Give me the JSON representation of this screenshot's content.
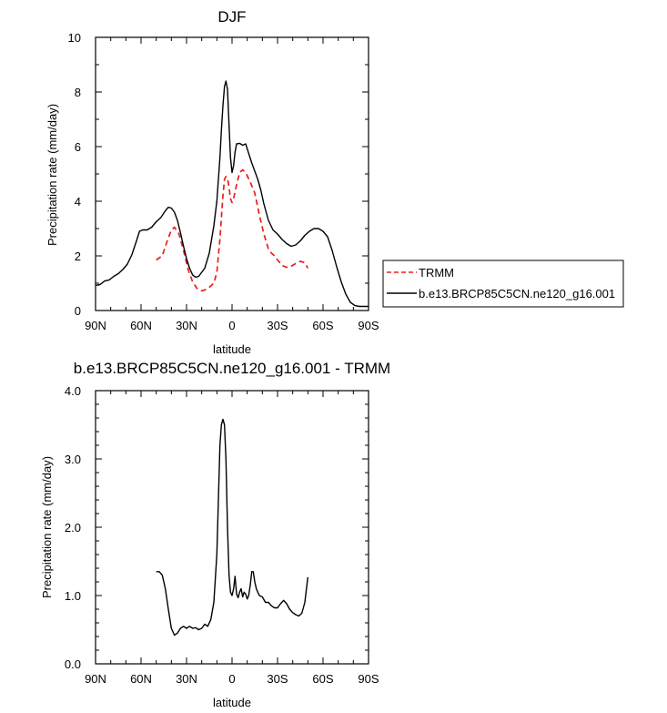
{
  "chart_data": [
    {
      "type": "line",
      "title": "DJF",
      "xlabel": "latitude",
      "ylabel": "Precipitation rate (mm/day)",
      "xlim": [
        90,
        -90
      ],
      "ylim": [
        0,
        10
      ],
      "xticks": [
        90,
        60,
        30,
        0,
        -30,
        -60,
        -90
      ],
      "xtick_labels": [
        "90N",
        "60N",
        "30N",
        "0",
        "30S",
        "60S",
        "90S"
      ],
      "yticks": [
        0,
        2,
        4,
        6,
        8,
        10
      ],
      "ytick_labels": [
        "0",
        "2",
        "4",
        "6",
        "8",
        "10"
      ],
      "legend": "outside-right",
      "series": [
        {
          "name": "TRMM",
          "color": "#e8201c",
          "dash": "dashed",
          "x": [
            50,
            46,
            43,
            40,
            38,
            35,
            32,
            29,
            26,
            23,
            20,
            18,
            15,
            12,
            10,
            8,
            7,
            6,
            5,
            4,
            3,
            2,
            1,
            0,
            -1,
            -3,
            -5,
            -7,
            -9,
            -12,
            -15,
            -18,
            -21,
            -24,
            -26,
            -28,
            -30,
            -33,
            -36,
            -39,
            -42,
            -45,
            -48,
            -50
          ],
          "y": [
            1.85,
            2.0,
            2.5,
            2.95,
            3.05,
            2.8,
            2.2,
            1.5,
            1.05,
            0.8,
            0.72,
            0.75,
            0.85,
            1.0,
            1.4,
            2.6,
            3.4,
            4.2,
            4.8,
            4.9,
            4.85,
            4.5,
            4.1,
            3.95,
            4.1,
            4.6,
            5.05,
            5.15,
            5.05,
            4.7,
            4.3,
            3.5,
            2.8,
            2.25,
            2.1,
            2.0,
            1.85,
            1.65,
            1.58,
            1.62,
            1.72,
            1.8,
            1.75,
            1.55
          ]
        },
        {
          "name": "b.e13.BRCP85C5CN.ne120_g16.001",
          "color": "#000000",
          "dash": "solid",
          "x": [
            90,
            87,
            84,
            81,
            78,
            75,
            72,
            69,
            66,
            63,
            61,
            59,
            56,
            53,
            50,
            47,
            44,
            42,
            40,
            38,
            36,
            34,
            32,
            30,
            28,
            26,
            24,
            22,
            20,
            18,
            15,
            12,
            10,
            8,
            7,
            6,
            5,
            4,
            3,
            2,
            1,
            0,
            -1,
            -2,
            -3,
            -5,
            -7,
            -9,
            -11,
            -13,
            -15,
            -17,
            -19,
            -21,
            -24,
            -27,
            -30,
            -33,
            -36,
            -39,
            -42,
            -45,
            -48,
            -51,
            -54,
            -57,
            -60,
            -63,
            -66,
            -69,
            -72,
            -75,
            -78,
            -81,
            -84,
            -87,
            -90
          ],
          "y": [
            0.92,
            0.95,
            1.08,
            1.12,
            1.25,
            1.35,
            1.5,
            1.7,
            2.05,
            2.55,
            2.9,
            2.95,
            2.95,
            3.05,
            3.25,
            3.4,
            3.65,
            3.78,
            3.75,
            3.6,
            3.3,
            2.85,
            2.35,
            1.9,
            1.55,
            1.3,
            1.22,
            1.25,
            1.4,
            1.55,
            2.1,
            3.1,
            4.0,
            5.6,
            6.6,
            7.5,
            8.2,
            8.4,
            8.1,
            6.8,
            5.6,
            5.05,
            5.3,
            5.8,
            6.1,
            6.12,
            6.05,
            6.1,
            5.75,
            5.4,
            5.1,
            4.8,
            4.4,
            3.9,
            3.3,
            2.95,
            2.8,
            2.6,
            2.45,
            2.35,
            2.4,
            2.55,
            2.75,
            2.9,
            3.0,
            3.0,
            2.9,
            2.7,
            2.2,
            1.6,
            1.05,
            0.6,
            0.3,
            0.18,
            0.15,
            0.15,
            0.15
          ]
        }
      ]
    },
    {
      "type": "line",
      "title": "b.e13.BRCP85C5CN.ne120_g16.001 - TRMM",
      "xlabel": "latitude",
      "ylabel": "Precipitation rate (mm/day)",
      "xlim": [
        90,
        -90
      ],
      "ylim": [
        0,
        4
      ],
      "xticks": [
        90,
        60,
        30,
        0,
        -30,
        -60,
        -90
      ],
      "xtick_labels": [
        "90N",
        "60N",
        "30N",
        "0",
        "30S",
        "60S",
        "90S"
      ],
      "yticks": [
        0,
        1,
        2,
        3,
        4
      ],
      "ytick_labels": [
        "0.0",
        "1.0",
        "2.0",
        "3.0",
        "4.0"
      ],
      "series": [
        {
          "color": "#000000",
          "dash": "solid",
          "x": [
            50,
            48,
            46,
            44,
            42,
            40,
            38,
            36,
            34,
            32,
            30,
            28,
            26,
            24,
            22,
            20,
            18,
            16,
            14,
            12,
            10,
            9,
            8,
            7,
            6,
            5,
            4,
            3,
            2,
            1,
            0,
            -1,
            -2,
            -3,
            -4,
            -5,
            -6,
            -7,
            -8,
            -9,
            -10,
            -11,
            -12,
            -13,
            -14,
            -15,
            -16,
            -17,
            -18,
            -20,
            -22,
            -24,
            -26,
            -28,
            -30,
            -32,
            -34,
            -36,
            -38,
            -40,
            -42,
            -44,
            -46,
            -48,
            -50
          ],
          "y": [
            1.35,
            1.35,
            1.3,
            1.1,
            0.8,
            0.52,
            0.42,
            0.45,
            0.52,
            0.55,
            0.52,
            0.55,
            0.52,
            0.53,
            0.5,
            0.52,
            0.58,
            0.55,
            0.65,
            0.9,
            1.6,
            2.4,
            3.2,
            3.5,
            3.58,
            3.5,
            3.0,
            2.0,
            1.3,
            1.05,
            1.0,
            1.1,
            1.28,
            1.02,
            0.97,
            1.05,
            1.1,
            0.98,
            1.05,
            1.02,
            0.95,
            1.0,
            1.15,
            1.35,
            1.35,
            1.2,
            1.1,
            1.05,
            1.0,
            0.98,
            0.9,
            0.9,
            0.85,
            0.82,
            0.82,
            0.88,
            0.93,
            0.88,
            0.8,
            0.75,
            0.72,
            0.7,
            0.74,
            0.9,
            1.27
          ]
        }
      ]
    }
  ]
}
